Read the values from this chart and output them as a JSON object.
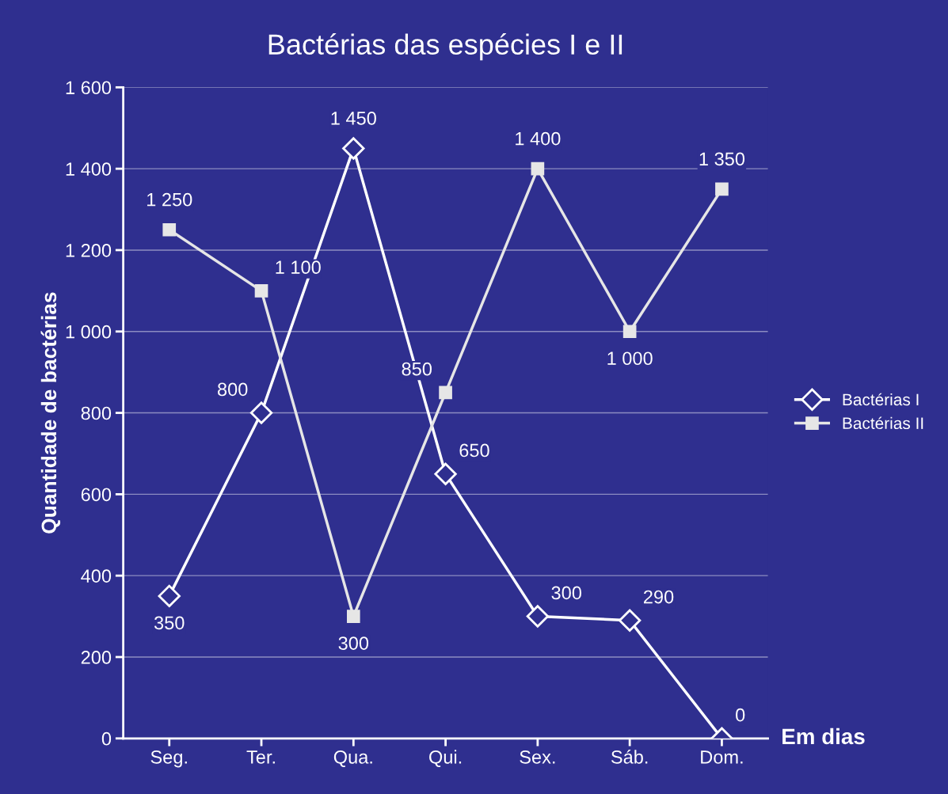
{
  "chart_data": {
    "type": "line",
    "title": "Bactérias das espécies I e II",
    "xlabel": "Em dias",
    "ylabel": "Quantidade de bactérias",
    "categories": [
      "Seg.",
      "Ter.",
      "Qua.",
      "Qui.",
      "Sex.",
      "Sáb.",
      "Dom."
    ],
    "series": [
      {
        "name": "Bactérias I",
        "color": "#ffffff",
        "marker": "diamond",
        "values": [
          350,
          800,
          1450,
          650,
          300,
          290,
          0
        ],
        "value_labels": [
          "350",
          "800",
          "1 450",
          "650",
          "300",
          "290",
          "0"
        ]
      },
      {
        "name": "Bactérias II",
        "color": "#e6e6e6",
        "marker": "square",
        "values": [
          1250,
          1100,
          300,
          850,
          1400,
          1000,
          1350
        ],
        "value_labels": [
          "1 250",
          "1 100",
          "300",
          "850",
          "1 400",
          "1 000",
          "1 350"
        ]
      }
    ],
    "ylim": [
      0,
      1600
    ],
    "yticks": [
      0,
      200,
      400,
      600,
      800,
      {
        "value": 1000,
        "label": "1 000"
      },
      {
        "value": 1200,
        "label": "1 200"
      },
      {
        "value": 1400,
        "label": "1 400"
      },
      {
        "value": 1600,
        "label": "1 600"
      }
    ],
    "grid": "y",
    "legend": "right"
  }
}
